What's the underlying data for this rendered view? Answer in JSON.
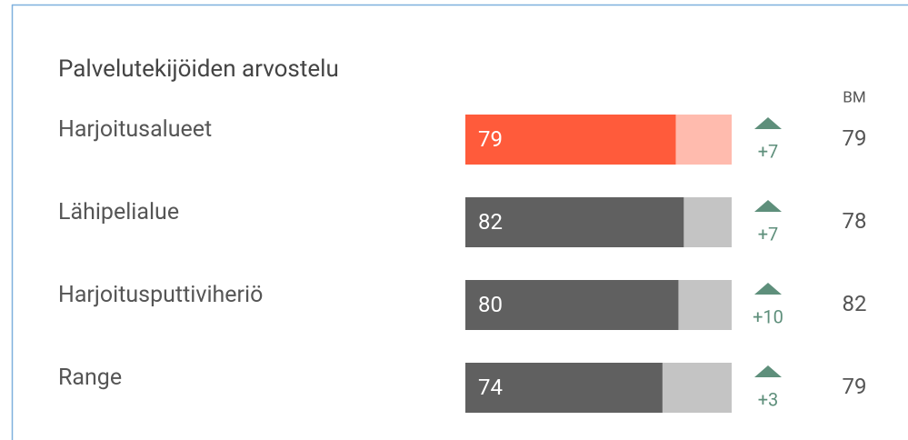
{
  "chart_data": {
    "type": "bar",
    "title": "Palvelutekijöiden arvostelu",
    "categories": [
      "Harjoitusalueet",
      "Lähipelialue",
      "Harjoitusputtiviheriö",
      "Range"
    ],
    "values": [
      79,
      82,
      80,
      74
    ],
    "bar_colors": [
      "#ff5b3b",
      "#606060",
      "#606060",
      "#606060"
    ],
    "track_colors": [
      "#ffbbae",
      "#c4c4c4",
      "#c4c4c4",
      "#c4c4c4"
    ],
    "xlim": [
      0,
      100
    ],
    "changes": [
      7,
      7,
      10,
      3
    ],
    "changes_value_labels": [
      "+7",
      "+7",
      "+10",
      "+3"
    ],
    "change_color": "#5e8f7b",
    "benchmark_label": "BM",
    "benchmarks": [
      79,
      78,
      82,
      79
    ]
  }
}
